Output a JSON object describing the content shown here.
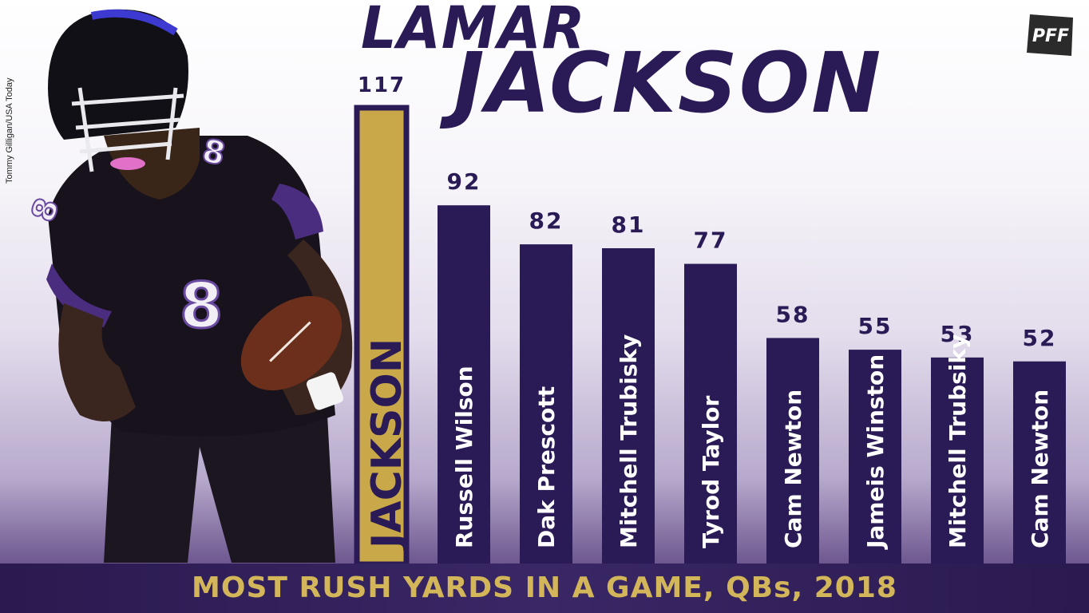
{
  "title_line1": "LAMAR",
  "title_line2": "JACKSON",
  "photo_credit": "Tommy Gilligan/USA Today",
  "logo_text": "PFF",
  "footer_title": "MOST RUSH YARDS IN A GAME, QBs, 2018",
  "colors": {
    "highlight": "#c9a849",
    "bar": "#2a1a55",
    "text": "#2a1a55",
    "footer_text": "#d4b65a"
  },
  "chart_data": {
    "type": "bar",
    "title": "MOST RUSH YARDS IN A GAME, QBs, 2018",
    "categories": [
      "JACKSON",
      "Russell Wilson",
      "Dak Prescott",
      "Mitchell Trubisky",
      "Tyrod Taylor",
      "Cam Newton",
      "Jameis Winston",
      "Mitchell Trubsiky",
      "Cam Newton"
    ],
    "values": [
      117,
      92,
      82,
      81,
      77,
      58,
      55,
      53,
      52
    ],
    "highlight_index": 0,
    "ylim": [
      0,
      117
    ],
    "grid": false,
    "legend": "none"
  }
}
